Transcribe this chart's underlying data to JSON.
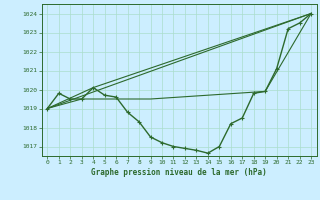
{
  "background_color": "#cceeff",
  "grid_color": "#aaddcc",
  "line_color": "#2d6a2d",
  "title": "Graphe pression niveau de la mer (hPa)",
  "xlim": [
    -0.5,
    23.5
  ],
  "ylim": [
    1016.5,
    1024.5
  ],
  "yticks": [
    1017,
    1018,
    1019,
    1020,
    1021,
    1022,
    1023,
    1024
  ],
  "xticks": [
    0,
    1,
    2,
    3,
    4,
    5,
    6,
    7,
    8,
    9,
    10,
    11,
    12,
    13,
    14,
    15,
    16,
    17,
    18,
    19,
    20,
    21,
    22,
    23
  ],
  "series": [
    {
      "x": [
        0,
        1,
        2,
        3,
        4,
        5,
        6,
        7,
        8,
        9,
        10,
        11,
        12,
        13,
        14,
        15,
        16,
        17,
        18,
        19,
        20,
        21,
        22,
        23
      ],
      "y": [
        1019.0,
        1019.8,
        1019.5,
        1019.5,
        1020.1,
        1019.7,
        1019.6,
        1018.8,
        1018.3,
        1017.5,
        1017.2,
        1017.0,
        1016.9,
        1016.8,
        1016.65,
        1017.0,
        1018.2,
        1018.5,
        1019.8,
        1019.9,
        1021.1,
        1023.2,
        1023.5,
        1024.0
      ],
      "marker": "+",
      "markersize": 3.5,
      "linewidth": 1.0
    },
    {
      "x": [
        0,
        23
      ],
      "y": [
        1019.0,
        1024.0
      ],
      "marker": null,
      "linewidth": 0.8
    },
    {
      "x": [
        0,
        4,
        23
      ],
      "y": [
        1019.0,
        1020.1,
        1024.0
      ],
      "marker": null,
      "linewidth": 0.8
    },
    {
      "x": [
        0,
        3,
        9,
        19,
        23
      ],
      "y": [
        1019.0,
        1019.5,
        1019.5,
        1019.9,
        1024.0
      ],
      "marker": null,
      "linewidth": 0.8
    }
  ]
}
